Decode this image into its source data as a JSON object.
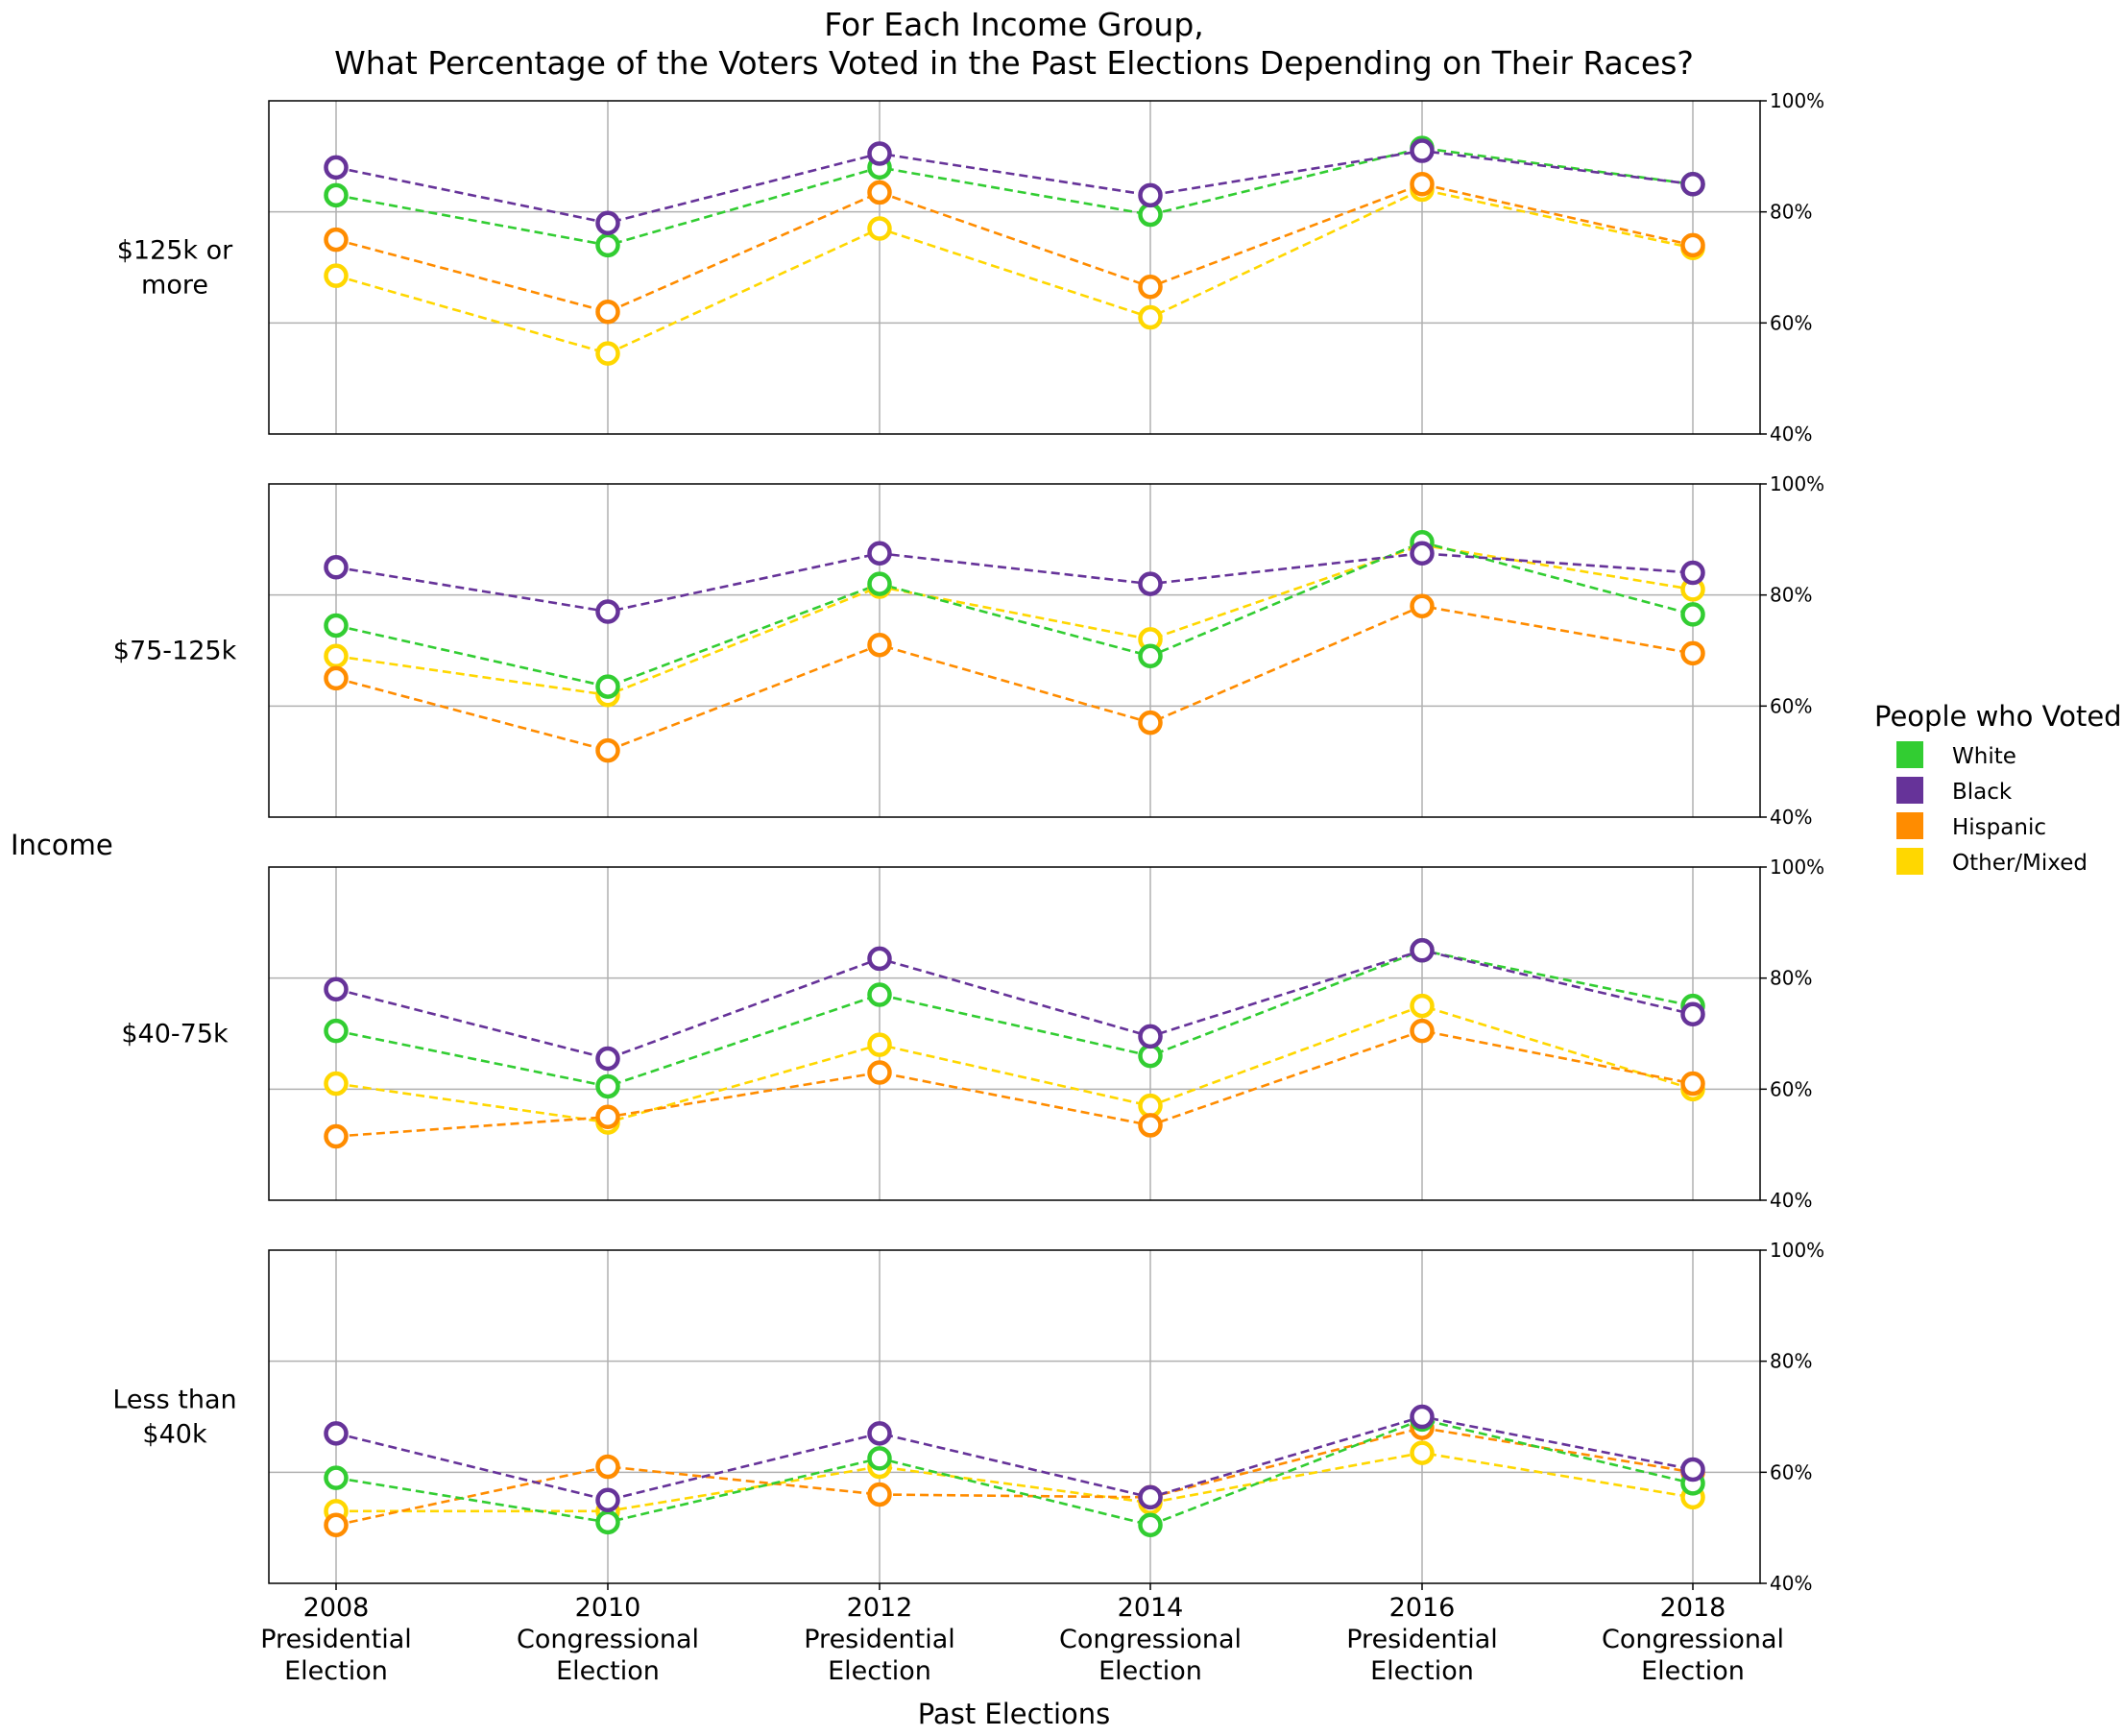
{
  "title_line1": "For Each Income Group,",
  "title_line2": "What Percentage of the Voters Voted in the Past Elections Depending on Their Races?",
  "y_group_label": "Income",
  "xlabel": "Past Elections",
  "legend_title": "People who Voted",
  "chart_data": {
    "type": "line",
    "title": "For Each Income Group, What Percentage of the Voters Voted in the Past Elections Depending on Their Races?",
    "xlabel": "Past Elections",
    "ylabel": "Income",
    "ylim": [
      40,
      100
    ],
    "yticks": [
      "100%",
      "80%",
      "60%",
      "40%"
    ],
    "grid": true,
    "legend_placement": "right",
    "categories": [
      [
        "2008",
        "Presidential",
        "Election"
      ],
      [
        "2010",
        "Congressional",
        "Election"
      ],
      [
        "2012",
        "Presidential",
        "Election"
      ],
      [
        "2014",
        "Congressional",
        "Election"
      ],
      [
        "2016",
        "Presidential",
        "Election"
      ],
      [
        "2018",
        "Congressional",
        "Election"
      ]
    ],
    "series_colors": {
      "White": "#32cd32",
      "Black": "#663399",
      "Hispanic": "#ff8c00",
      "Other/Mixed": "#ffd700"
    },
    "panels": [
      {
        "label": [
          "$125k or",
          "more"
        ],
        "series": [
          {
            "name": "White",
            "values": [
              83,
              74,
              88,
              79.5,
              91.5,
              85
            ]
          },
          {
            "name": "Black",
            "values": [
              88,
              78,
              90.5,
              83,
              91,
              85
            ]
          },
          {
            "name": "Hispanic",
            "values": [
              75,
              62,
              83.5,
              66.5,
              85,
              74
            ]
          },
          {
            "name": "Other/Mixed",
            "values": [
              68.5,
              54.5,
              77,
              61,
              84,
              73.5
            ]
          }
        ]
      },
      {
        "label": [
          "$75-125k"
        ],
        "series": [
          {
            "name": "White",
            "values": [
              74.5,
              63.5,
              82,
              69,
              89.5,
              76.5
            ]
          },
          {
            "name": "Black",
            "values": [
              85,
              77,
              87.5,
              82,
              87.5,
              84
            ]
          },
          {
            "name": "Hispanic",
            "values": [
              65,
              52,
              71,
              57,
              78,
              69.5
            ]
          },
          {
            "name": "Other/Mixed",
            "values": [
              69,
              62,
              81.5,
              72,
              89,
              81
            ]
          }
        ]
      },
      {
        "label": [
          "$40-75k"
        ],
        "series": [
          {
            "name": "White",
            "values": [
              70.5,
              60.5,
              77,
              66,
              85,
              75
            ]
          },
          {
            "name": "Black",
            "values": [
              78,
              65.5,
              83.5,
              69.5,
              85,
              73.5
            ]
          },
          {
            "name": "Hispanic",
            "values": [
              51.5,
              55,
              63,
              53.5,
              70.5,
              61
            ]
          },
          {
            "name": "Other/Mixed",
            "values": [
              61,
              54,
              68,
              57,
              75,
              60
            ]
          }
        ]
      },
      {
        "label": [
          "Less than",
          "$40k"
        ],
        "series": [
          {
            "name": "White",
            "values": [
              59,
              51,
              62.5,
              50.5,
              69.5,
              58
            ]
          },
          {
            "name": "Black",
            "values": [
              67,
              55,
              67,
              55.5,
              70,
              60.5
            ]
          },
          {
            "name": "Hispanic",
            "values": [
              50.5,
              61,
              56,
              55.5,
              68,
              60
            ]
          },
          {
            "name": "Other/Mixed",
            "values": [
              53,
              53,
              61,
              54.5,
              63.5,
              55.5
            ]
          }
        ]
      }
    ]
  }
}
